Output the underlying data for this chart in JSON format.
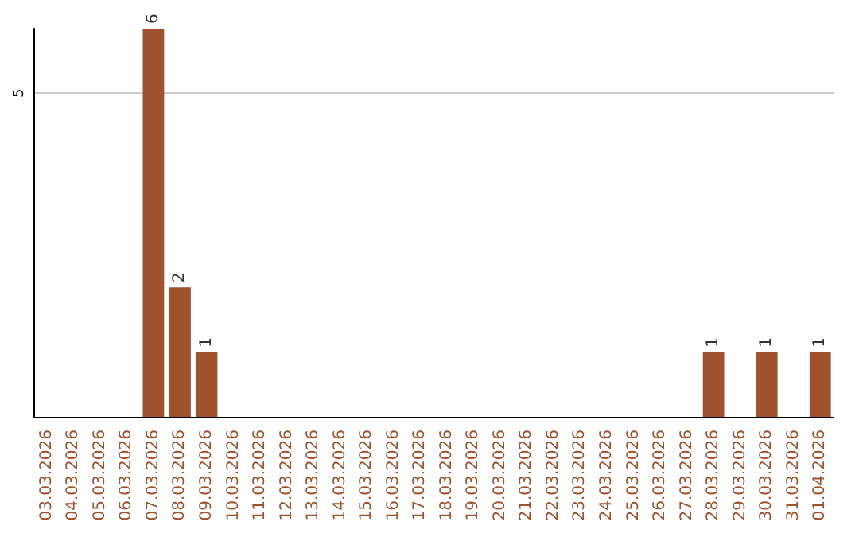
{
  "chart_data": {
    "type": "bar",
    "categories": [
      "03.03.2026",
      "04.03.2026",
      "05.03.2026",
      "06.03.2026",
      "07.03.2026",
      "08.03.2026",
      "09.03.2026",
      "10.03.2026",
      "11.03.2026",
      "12.03.2026",
      "13.03.2026",
      "14.03.2026",
      "15.03.2026",
      "16.03.2026",
      "17.03.2026",
      "18.03.2026",
      "19.03.2026",
      "20.03.2026",
      "21.03.2026",
      "22.03.2026",
      "23.03.2026",
      "24.03.2026",
      "25.03.2026",
      "26.03.2026",
      "27.03.2026",
      "28.03.2026",
      "29.03.2026",
      "30.03.2026",
      "31.03.2026",
      "01.04.2026"
    ],
    "values": [
      0,
      0,
      0,
      0,
      6,
      2,
      1,
      0,
      0,
      0,
      0,
      0,
      0,
      0,
      0,
      0,
      0,
      0,
      0,
      0,
      0,
      0,
      0,
      0,
      0,
      1,
      0,
      1,
      0,
      1
    ],
    "value_labels": [
      null,
      null,
      null,
      null,
      "6",
      "2",
      "1",
      null,
      null,
      null,
      null,
      null,
      null,
      null,
      null,
      null,
      null,
      null,
      null,
      null,
      null,
      null,
      null,
      null,
      null,
      "1",
      null,
      "1",
      null,
      "1"
    ],
    "color": "#a0522d",
    "ylim": [
      0,
      6
    ],
    "yticks": [
      5
    ],
    "grid": "y"
  }
}
